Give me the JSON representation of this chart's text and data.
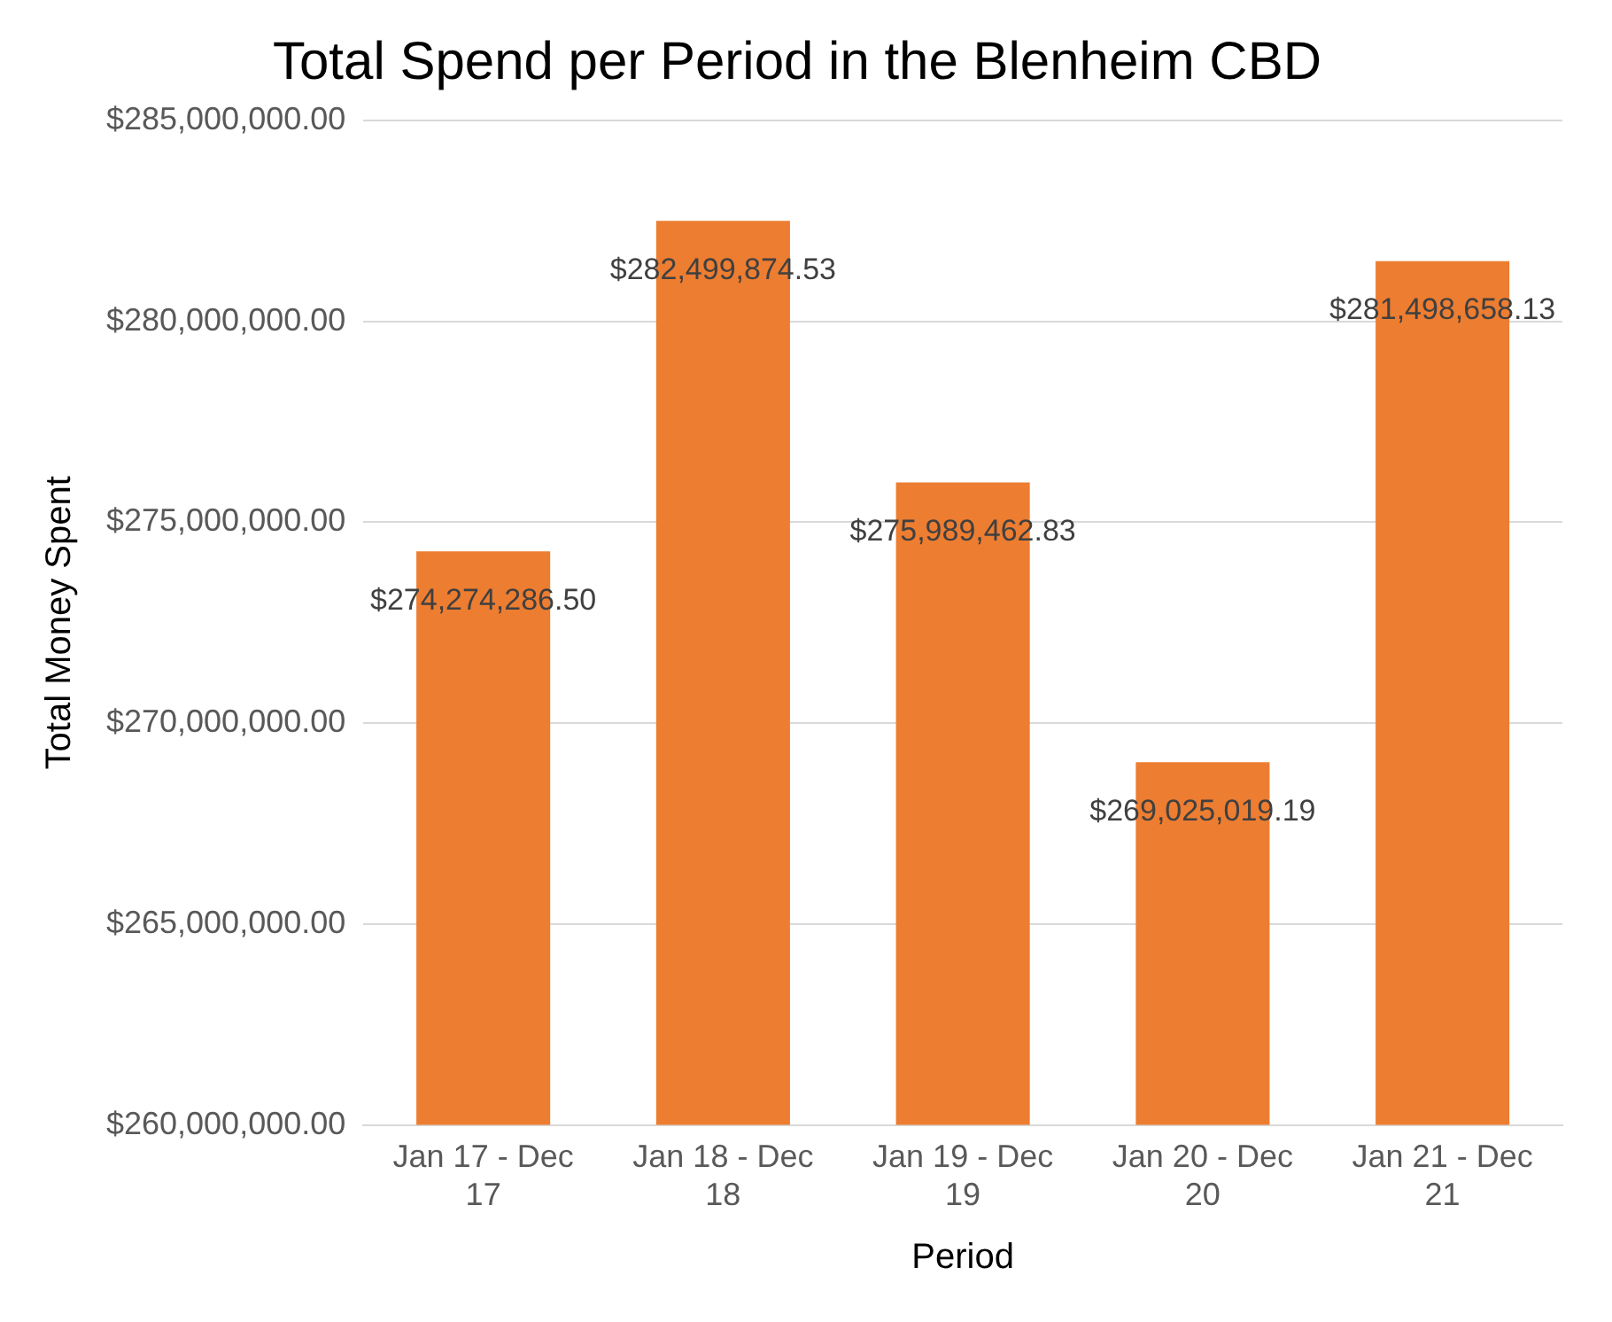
{
  "chart_data": {
    "type": "bar",
    "title": "Total Spend per Period in the Blenheim CBD",
    "xlabel": "Period",
    "ylabel": "Total Money Spent",
    "categories": [
      "Jan 17 - Dec 17",
      "Jan 18 - Dec 18",
      "Jan 19 - Dec 19",
      "Jan 20 - Dec 20",
      "Jan 21 - Dec 21"
    ],
    "values": [
      274274286.5,
      282499874.53,
      275989462.83,
      269025019.19,
      281498658.13
    ],
    "value_labels": [
      "$274,274,286.50",
      "$282,499,874.53",
      "$275,989,462.83",
      "$269,025,019.19",
      "$281,498,658.13"
    ],
    "color": "#ed7d31",
    "ylim": [
      260000000,
      285000000
    ],
    "yticks": [
      {
        "value": 260000000,
        "label": "$260,000,000.00"
      },
      {
        "value": 265000000,
        "label": "$265,000,000.00"
      },
      {
        "value": 270000000,
        "label": "$270,000,000.00"
      },
      {
        "value": 275000000,
        "label": "$275,000,000.00"
      },
      {
        "value": 280000000,
        "label": "$280,000,000.00"
      },
      {
        "value": 285000000,
        "label": "$285,000,000.00"
      }
    ],
    "grid": "y",
    "legend": false
  }
}
